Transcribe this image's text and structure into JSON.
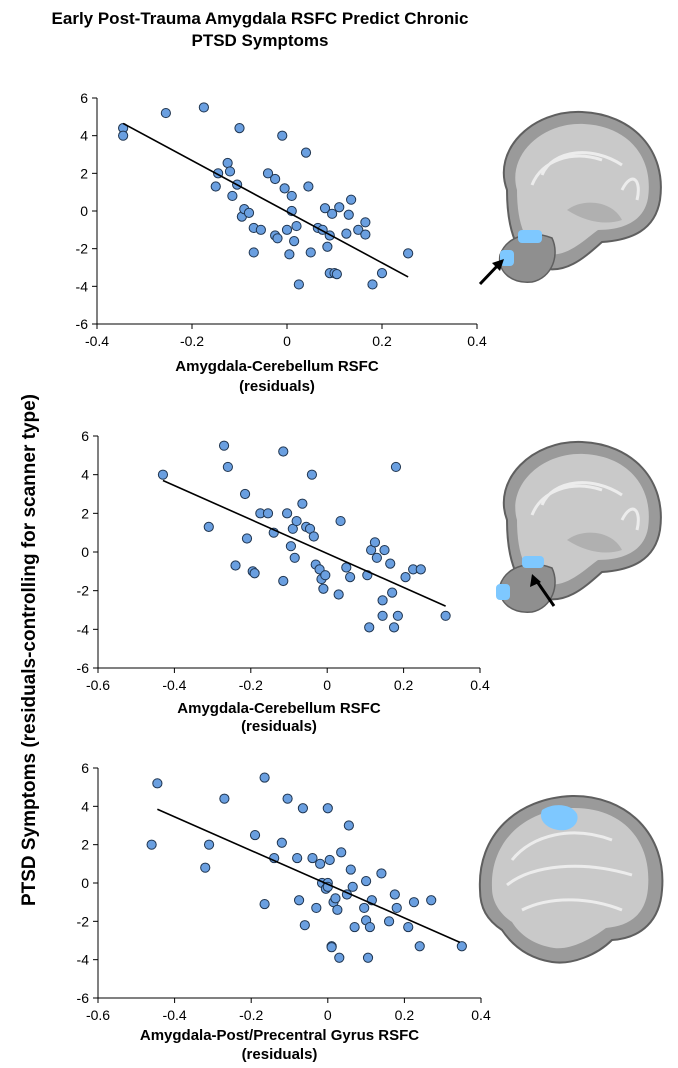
{
  "figure": {
    "title_line1": "Early Post-Trauma Amygdala RSFC Predict Chronic",
    "title_line2": "PTSD Symptoms",
    "shared_ylabel": "PTSD Symptoms (residuals-controlling for scanner type)"
  },
  "chart_data": [
    {
      "type": "scatter",
      "xlabel_line1": "Amygdala-Cerebellum RSFC",
      "xlabel_line2": "(residuals)",
      "xlim": [
        -0.4,
        0.4
      ],
      "ylim": [
        -6,
        6
      ],
      "xticks": [
        -0.4,
        -0.2,
        0,
        0.2,
        0.4
      ],
      "yticks": [
        6,
        4,
        2,
        0,
        -2,
        -4,
        -6
      ],
      "marker_color": "#6a9fe0",
      "trendline": {
        "x": [
          -0.345,
          0.255
        ],
        "y": [
          4.65,
          -3.5
        ]
      },
      "points": [
        [
          -0.345,
          4.4
        ],
        [
          -0.345,
          4.0
        ],
        [
          -0.255,
          5.2
        ],
        [
          -0.175,
          5.5
        ],
        [
          -0.15,
          1.3
        ],
        [
          -0.145,
          2.0
        ],
        [
          -0.125,
          2.55
        ],
        [
          -0.12,
          2.1
        ],
        [
          -0.115,
          0.8
        ],
        [
          -0.105,
          1.4
        ],
        [
          -0.1,
          4.4
        ],
        [
          -0.095,
          -0.3
        ],
        [
          -0.09,
          0.1
        ],
        [
          -0.08,
          -0.1
        ],
        [
          -0.07,
          -0.9
        ],
        [
          -0.07,
          -2.2
        ],
        [
          -0.055,
          -1.0
        ],
        [
          -0.04,
          2.0
        ],
        [
          -0.025,
          1.7
        ],
        [
          -0.025,
          -1.3
        ],
        [
          -0.02,
          -1.45
        ],
        [
          -0.01,
          4.0
        ],
        [
          -0.005,
          1.2
        ],
        [
          0.0,
          -1.0
        ],
        [
          0.005,
          -2.3
        ],
        [
          0.01,
          0.8
        ],
        [
          0.01,
          0.0
        ],
        [
          0.015,
          -1.6
        ],
        [
          0.02,
          -0.8
        ],
        [
          0.025,
          -3.9
        ],
        [
          0.04,
          3.1
        ],
        [
          0.045,
          1.3
        ],
        [
          0.05,
          -2.2
        ],
        [
          0.065,
          -0.9
        ],
        [
          0.075,
          -1.0
        ],
        [
          0.08,
          0.15
        ],
        [
          0.085,
          -1.9
        ],
        [
          0.09,
          -1.3
        ],
        [
          0.095,
          -0.15
        ],
        [
          0.09,
          -3.3
        ],
        [
          0.1,
          -3.3
        ],
        [
          0.105,
          -3.35
        ],
        [
          0.11,
          0.2
        ],
        [
          0.125,
          -1.2
        ],
        [
          0.13,
          -0.2
        ],
        [
          0.135,
          0.6
        ],
        [
          0.15,
          -1.0
        ],
        [
          0.165,
          -1.25
        ],
        [
          0.165,
          -0.6
        ],
        [
          0.18,
          -3.9
        ],
        [
          0.2,
          -3.3
        ],
        [
          0.255,
          -2.25
        ]
      ]
    },
    {
      "type": "scatter",
      "xlabel_line1": "Amygdala-Cerebellum RSFC",
      "xlabel_line2": "(residuals)",
      "xlim": [
        -0.6,
        0.4
      ],
      "ylim": [
        -6,
        6
      ],
      "xticks": [
        -0.6,
        -0.4,
        -0.2,
        0,
        0.2,
        0.4
      ],
      "yticks": [
        6,
        4,
        2,
        0,
        -2,
        -4,
        -6
      ],
      "marker_color": "#6a9fe0",
      "trendline": {
        "x": [
          -0.43,
          0.31
        ],
        "y": [
          3.7,
          -2.8
        ]
      },
      "points": [
        [
          -0.43,
          4.0
        ],
        [
          -0.31,
          1.3
        ],
        [
          -0.27,
          5.5
        ],
        [
          -0.26,
          4.4
        ],
        [
          -0.24,
          -0.7
        ],
        [
          -0.215,
          3.0
        ],
        [
          -0.21,
          0.7
        ],
        [
          -0.195,
          -1.0
        ],
        [
          -0.19,
          -1.1
        ],
        [
          -0.175,
          2.0
        ],
        [
          -0.155,
          2.0
        ],
        [
          -0.14,
          1.0
        ],
        [
          -0.115,
          -1.5
        ],
        [
          -0.115,
          5.2
        ],
        [
          -0.105,
          2.0
        ],
        [
          -0.095,
          0.3
        ],
        [
          -0.09,
          1.2
        ],
        [
          -0.085,
          -0.3
        ],
        [
          -0.08,
          1.6
        ],
        [
          -0.065,
          2.5
        ],
        [
          -0.055,
          1.3
        ],
        [
          -0.045,
          1.2
        ],
        [
          -0.04,
          4.0
        ],
        [
          -0.035,
          0.8
        ],
        [
          -0.03,
          -0.65
        ],
        [
          -0.02,
          -0.9
        ],
        [
          -0.015,
          -1.4
        ],
        [
          -0.01,
          -1.9
        ],
        [
          -0.005,
          -1.2
        ],
        [
          0.03,
          -2.2
        ],
        [
          0.035,
          1.6
        ],
        [
          0.05,
          -0.8
        ],
        [
          0.06,
          -1.3
        ],
        [
          0.105,
          -1.2
        ],
        [
          0.11,
          -3.9
        ],
        [
          0.115,
          0.1
        ],
        [
          0.125,
          0.5
        ],
        [
          0.13,
          -0.3
        ],
        [
          0.145,
          -2.5
        ],
        [
          0.145,
          -3.3
        ],
        [
          0.15,
          0.1
        ],
        [
          0.165,
          -0.6
        ],
        [
          0.17,
          -2.1
        ],
        [
          0.175,
          -3.9
        ],
        [
          0.18,
          4.4
        ],
        [
          0.185,
          -3.3
        ],
        [
          0.205,
          -1.3
        ],
        [
          0.225,
          -0.9
        ],
        [
          0.245,
          -0.9
        ],
        [
          0.31,
          -3.3
        ]
      ]
    },
    {
      "type": "scatter",
      "xlabel_line1": "Amygdala-Post/Precentral Gyrus RSFC",
      "xlabel_line2": "(residuals)",
      "xlim": [
        -0.6,
        0.4
      ],
      "ylim": [
        -6,
        6
      ],
      "xticks": [
        -0.6,
        -0.4,
        -0.2,
        0,
        0.2,
        0.4
      ],
      "yticks": [
        6,
        4,
        2,
        0,
        -2,
        -4,
        -6
      ],
      "marker_color": "#6a9fe0",
      "trendline": {
        "x": [
          -0.445,
          0.345
        ],
        "y": [
          3.85,
          -3.1
        ]
      },
      "points": [
        [
          -0.46,
          2.0
        ],
        [
          -0.445,
          5.2
        ],
        [
          -0.32,
          0.8
        ],
        [
          -0.31,
          2.0
        ],
        [
          -0.27,
          4.4
        ],
        [
          -0.19,
          2.5
        ],
        [
          -0.165,
          5.5
        ],
        [
          -0.165,
          -1.1
        ],
        [
          -0.14,
          1.3
        ],
        [
          -0.12,
          2.1
        ],
        [
          -0.105,
          4.4
        ],
        [
          -0.08,
          1.3
        ],
        [
          -0.075,
          -0.9
        ],
        [
          -0.065,
          3.9
        ],
        [
          -0.06,
          -2.2
        ],
        [
          -0.04,
          1.3
        ],
        [
          -0.03,
          -1.3
        ],
        [
          -0.02,
          1.0
        ],
        [
          -0.015,
          0.0
        ],
        [
          -0.005,
          -0.3
        ],
        [
          0.0,
          0.0
        ],
        [
          0.0,
          3.9
        ],
        [
          0.0,
          -0.2
        ],
        [
          0.005,
          1.2
        ],
        [
          0.01,
          -3.3
        ],
        [
          0.01,
          -3.35
        ],
        [
          0.015,
          -1.0
        ],
        [
          0.02,
          -0.8
        ],
        [
          0.025,
          -1.4
        ],
        [
          0.03,
          -3.9
        ],
        [
          0.035,
          1.6
        ],
        [
          0.05,
          -0.6
        ],
        [
          0.055,
          3.0
        ],
        [
          0.06,
          0.7
        ],
        [
          0.065,
          -0.2
        ],
        [
          0.07,
          -2.3
        ],
        [
          0.095,
          -1.3
        ],
        [
          0.1,
          0.1
        ],
        [
          0.1,
          -1.95
        ],
        [
          0.105,
          -3.9
        ],
        [
          0.11,
          -2.3
        ],
        [
          0.115,
          -0.9
        ],
        [
          0.14,
          0.5
        ],
        [
          0.16,
          -2.0
        ],
        [
          0.175,
          -0.6
        ],
        [
          0.18,
          -1.3
        ],
        [
          0.21,
          -2.3
        ],
        [
          0.225,
          -1.0
        ],
        [
          0.24,
          -3.3
        ],
        [
          0.27,
          -0.9
        ],
        [
          0.35,
          -3.3
        ]
      ]
    }
  ]
}
